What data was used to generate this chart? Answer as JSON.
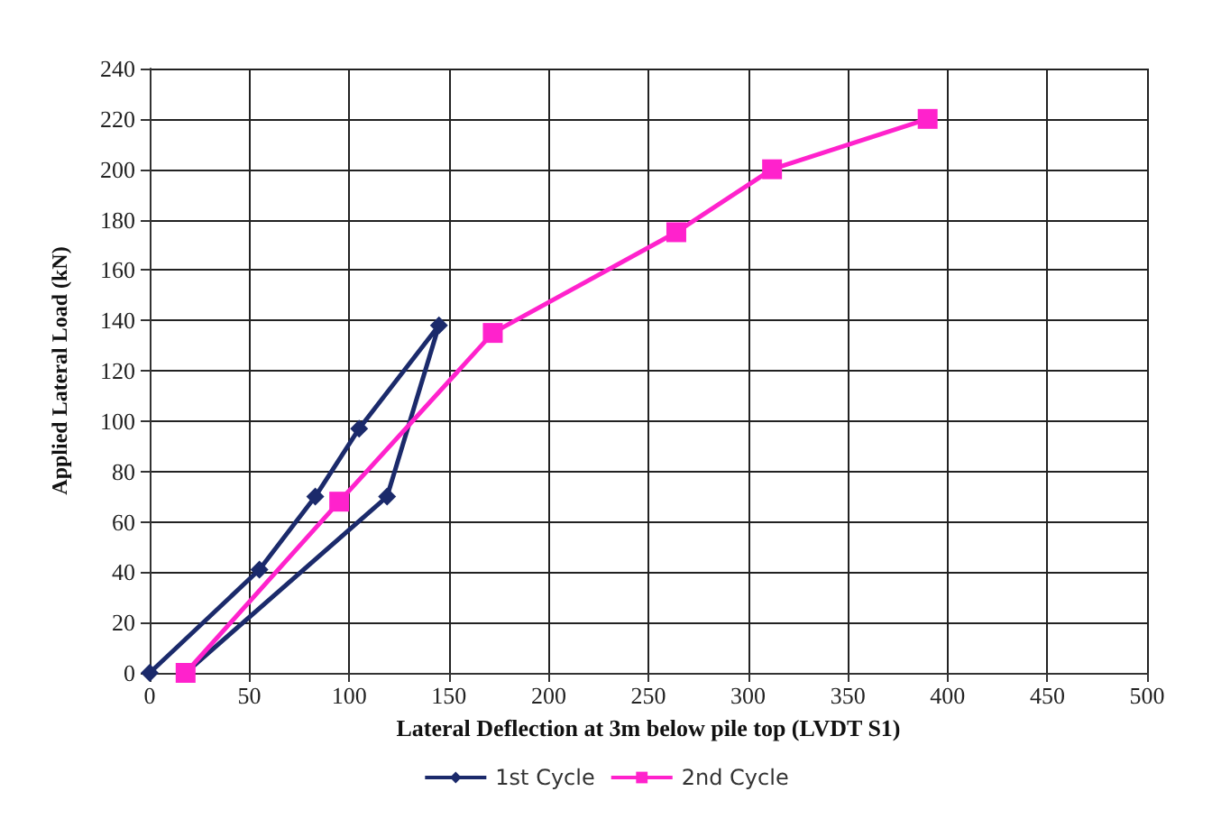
{
  "chart_data": {
    "type": "line",
    "xlabel": "Lateral Deflection at 3m below pile top (LVDT S1)",
    "ylabel": "Applied Lateral Load (kN)",
    "series": [
      {
        "name": "1st Cycle",
        "color": "#1b2a6b",
        "marker": "diamond",
        "x": [
          0,
          55,
          83,
          105,
          145,
          119,
          18
        ],
        "values": [
          0,
          41,
          70,
          97,
          138,
          70,
          0
        ]
      },
      {
        "name": "2nd Cycle",
        "color": "#ff22cc",
        "marker": "square",
        "x": [
          18,
          95,
          172,
          264,
          312,
          390
        ],
        "values": [
          0,
          68,
          135,
          175,
          200,
          220
        ]
      }
    ],
    "xlim": [
      0,
      500
    ],
    "xticks": [
      0,
      50,
      100,
      150,
      200,
      250,
      300,
      350,
      400,
      450,
      500
    ],
    "ylim": [
      0,
      240
    ],
    "yticks": [
      0,
      20,
      40,
      60,
      80,
      100,
      120,
      140,
      160,
      180,
      200,
      220,
      240
    ],
    "grid": true,
    "legend": "bottom"
  }
}
